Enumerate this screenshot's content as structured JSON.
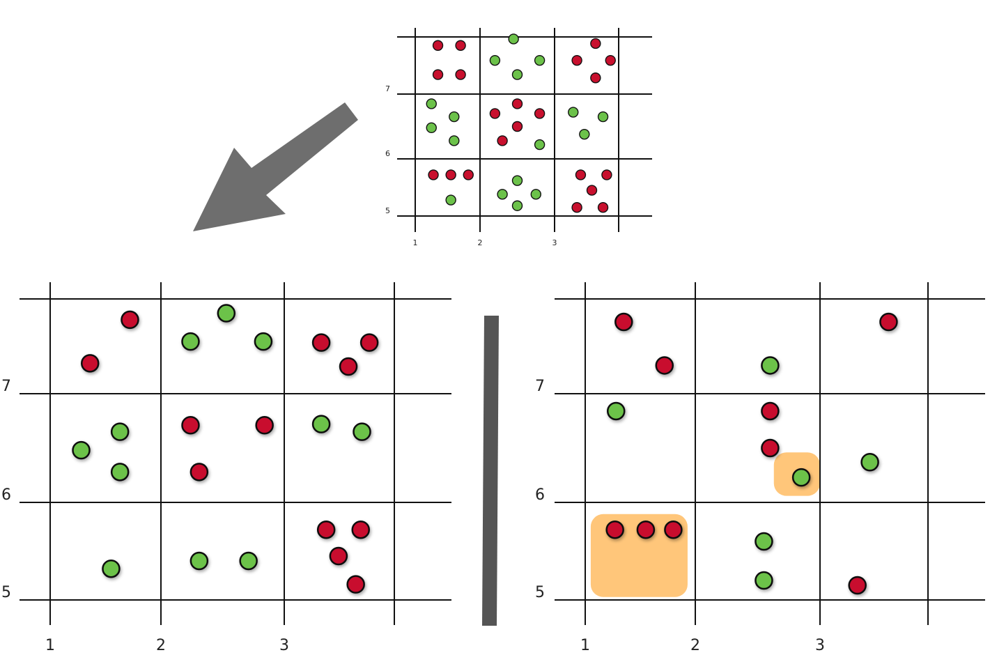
{
  "colors": {
    "red": "#c8102e",
    "green": "#6cc24a",
    "arrow": "#6e6e6e",
    "divider": "#555555",
    "highlight": "#ffc06b",
    "grid": "#111111"
  },
  "icons": [
    "arrow-down-left-icon"
  ],
  "panels": [
    {
      "id": "overview",
      "x_tick_values": [
        1,
        2,
        3
      ],
      "x_tick_labels": [
        "1",
        "2",
        "3"
      ],
      "y_tick_values": [
        5,
        6,
        7
      ],
      "y_tick_labels": [
        "5",
        "6",
        "7"
      ],
      "highlights": [],
      "points": [
        {
          "x": 1.35,
          "y": 7.75,
          "c": "red"
        },
        {
          "x": 1.7,
          "y": 7.75,
          "c": "red"
        },
        {
          "x": 1.35,
          "y": 7.3,
          "c": "red"
        },
        {
          "x": 1.7,
          "y": 7.3,
          "c": "red"
        },
        {
          "x": 2.45,
          "y": 7.85,
          "c": "green"
        },
        {
          "x": 2.2,
          "y": 7.52,
          "c": "green"
        },
        {
          "x": 2.8,
          "y": 7.52,
          "c": "green"
        },
        {
          "x": 2.5,
          "y": 7.3,
          "c": "green"
        },
        {
          "x": 3.55,
          "y": 7.78,
          "c": "red"
        },
        {
          "x": 3.3,
          "y": 7.52,
          "c": "red"
        },
        {
          "x": 3.75,
          "y": 7.52,
          "c": "red"
        },
        {
          "x": 3.55,
          "y": 7.25,
          "c": "red"
        },
        {
          "x": 1.25,
          "y": 6.85,
          "c": "green"
        },
        {
          "x": 1.6,
          "y": 6.65,
          "c": "green"
        },
        {
          "x": 1.25,
          "y": 6.48,
          "c": "green"
        },
        {
          "x": 1.6,
          "y": 6.28,
          "c": "green"
        },
        {
          "x": 2.2,
          "y": 6.7,
          "c": "red"
        },
        {
          "x": 2.5,
          "y": 6.85,
          "c": "red"
        },
        {
          "x": 2.8,
          "y": 6.7,
          "c": "red"
        },
        {
          "x": 2.5,
          "y": 6.5,
          "c": "red"
        },
        {
          "x": 2.3,
          "y": 6.28,
          "c": "red"
        },
        {
          "x": 2.8,
          "y": 6.22,
          "c": "green"
        },
        {
          "x": 3.25,
          "y": 6.72,
          "c": "green"
        },
        {
          "x": 3.65,
          "y": 6.65,
          "c": "green"
        },
        {
          "x": 3.4,
          "y": 6.38,
          "c": "green"
        },
        {
          "x": 1.28,
          "y": 5.72,
          "c": "red"
        },
        {
          "x": 1.55,
          "y": 5.72,
          "c": "red"
        },
        {
          "x": 1.82,
          "y": 5.72,
          "c": "red"
        },
        {
          "x": 1.55,
          "y": 5.28,
          "c": "green"
        },
        {
          "x": 2.5,
          "y": 5.62,
          "c": "green"
        },
        {
          "x": 2.3,
          "y": 5.38,
          "c": "green"
        },
        {
          "x": 2.75,
          "y": 5.38,
          "c": "green"
        },
        {
          "x": 2.5,
          "y": 5.18,
          "c": "green"
        },
        {
          "x": 3.35,
          "y": 5.72,
          "c": "red"
        },
        {
          "x": 3.7,
          "y": 5.72,
          "c": "red"
        },
        {
          "x": 3.5,
          "y": 5.45,
          "c": "red"
        },
        {
          "x": 3.3,
          "y": 5.15,
          "c": "red"
        },
        {
          "x": 3.65,
          "y": 5.15,
          "c": "red"
        }
      ]
    },
    {
      "id": "left",
      "x_tick_values": [
        1,
        2,
        3
      ],
      "x_tick_labels": [
        "1",
        "2",
        "3"
      ],
      "y_tick_values": [
        5,
        6,
        7
      ],
      "y_tick_labels": [
        "5",
        "6",
        "7"
      ],
      "highlights": [],
      "points": [
        {
          "x": 1.36,
          "y": 7.28,
          "c": "red"
        },
        {
          "x": 1.72,
          "y": 7.68,
          "c": "red"
        },
        {
          "x": 2.24,
          "y": 7.48,
          "c": "green"
        },
        {
          "x": 2.53,
          "y": 7.74,
          "c": "green"
        },
        {
          "x": 2.83,
          "y": 7.48,
          "c": "green"
        },
        {
          "x": 3.3,
          "y": 7.47,
          "c": "red"
        },
        {
          "x": 3.52,
          "y": 7.25,
          "c": "red"
        },
        {
          "x": 3.69,
          "y": 7.47,
          "c": "red"
        },
        {
          "x": 1.28,
          "y": 6.48,
          "c": "green"
        },
        {
          "x": 1.63,
          "y": 6.65,
          "c": "green"
        },
        {
          "x": 1.63,
          "y": 6.28,
          "c": "green"
        },
        {
          "x": 2.24,
          "y": 6.71,
          "c": "red"
        },
        {
          "x": 2.31,
          "y": 6.28,
          "c": "red"
        },
        {
          "x": 2.84,
          "y": 6.71,
          "c": "red"
        },
        {
          "x": 3.3,
          "y": 6.72,
          "c": "green"
        },
        {
          "x": 3.63,
          "y": 6.65,
          "c": "green"
        },
        {
          "x": 1.55,
          "y": 5.32,
          "c": "green"
        },
        {
          "x": 2.31,
          "y": 5.4,
          "c": "green"
        },
        {
          "x": 2.71,
          "y": 5.4,
          "c": "green"
        },
        {
          "x": 3.34,
          "y": 5.72,
          "c": "red"
        },
        {
          "x": 3.62,
          "y": 5.72,
          "c": "red"
        },
        {
          "x": 3.44,
          "y": 5.45,
          "c": "red"
        },
        {
          "x": 3.58,
          "y": 5.16,
          "c": "red"
        }
      ]
    },
    {
      "id": "right",
      "x_tick_values": [
        1,
        2,
        3
      ],
      "x_tick_labels": [
        "1",
        "2",
        "3"
      ],
      "y_tick_values": [
        5,
        6,
        7
      ],
      "y_tick_labels": [
        "5",
        "6",
        "7"
      ],
      "highlights": [
        {
          "x0": 1.05,
          "x1": 1.93,
          "y0": 5.03,
          "y1": 5.88
        },
        {
          "x0": 2.63,
          "x1": 3.0,
          "y0": 6.06,
          "y1": 6.46
        }
      ],
      "points": [
        {
          "x": 1.35,
          "y": 7.66,
          "c": "red"
        },
        {
          "x": 1.72,
          "y": 7.26,
          "c": "red"
        },
        {
          "x": 2.6,
          "y": 7.26,
          "c": "green"
        },
        {
          "x": 3.55,
          "y": 7.66,
          "c": "red"
        },
        {
          "x": 1.28,
          "y": 6.84,
          "c": "green"
        },
        {
          "x": 2.6,
          "y": 6.84,
          "c": "red"
        },
        {
          "x": 2.6,
          "y": 6.5,
          "c": "red"
        },
        {
          "x": 2.85,
          "y": 6.23,
          "c": "green"
        },
        {
          "x": 3.4,
          "y": 6.37,
          "c": "green"
        },
        {
          "x": 1.27,
          "y": 5.72,
          "c": "red"
        },
        {
          "x": 1.55,
          "y": 5.72,
          "c": "red"
        },
        {
          "x": 1.8,
          "y": 5.72,
          "c": "red"
        },
        {
          "x": 2.55,
          "y": 5.6,
          "c": "green"
        },
        {
          "x": 2.55,
          "y": 5.2,
          "c": "green"
        },
        {
          "x": 3.3,
          "y": 5.15,
          "c": "red"
        }
      ]
    }
  ]
}
